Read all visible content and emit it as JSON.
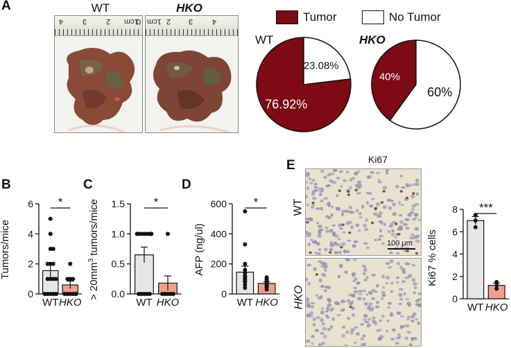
{
  "panels": {
    "A": "A",
    "B": "B",
    "C": "C",
    "D": "D",
    "E": "E"
  },
  "photo_labels": {
    "wt": "WT",
    "hko": "HKO"
  },
  "ruler_labels": [
    "4",
    "3",
    "2",
    "1cm",
    "0",
    "1cm",
    "2",
    "3",
    "4"
  ],
  "legend": [
    {
      "label": "Tumor",
      "color": "#7d0a14"
    },
    {
      "label": "No Tumor",
      "color": "#ffffff"
    }
  ],
  "pies": [
    {
      "title": "WT",
      "slices": [
        {
          "label": "Tumor",
          "value": 76.92,
          "text": "76.92%"
        },
        {
          "label": "No Tumor",
          "value": 23.08,
          "text": "23.08%"
        }
      ]
    },
    {
      "title": "HKO",
      "slices": [
        {
          "label": "Tumor",
          "value": 40,
          "text": "40%"
        },
        {
          "label": "No Tumor",
          "value": 60,
          "text": "60%"
        }
      ]
    }
  ],
  "chart_data": [
    {
      "type": "bar",
      "panel": "B",
      "ylabel": "Tumors/mice",
      "ylim": [
        0,
        6
      ],
      "yticks": [
        "0",
        "2",
        "4",
        "6"
      ],
      "categories": [
        "WT",
        "HKO"
      ],
      "values": [
        1.55,
        0.6
      ],
      "errors": [
        0.45,
        0.25
      ],
      "significance": "*",
      "points": [
        [
          0,
          0,
          0,
          0,
          0,
          0,
          0,
          1,
          1,
          1,
          1,
          2,
          2,
          2,
          3,
          3,
          4,
          5
        ],
        [
          0,
          0,
          0,
          0,
          0,
          0,
          1,
          1,
          1,
          2
        ]
      ]
    },
    {
      "type": "bar",
      "panel": "C",
      "ylabel": "> 20mm3 tumors/mice",
      "ylabel_parts": [
        "> 20mm",
        "3",
        " tumors/mice"
      ],
      "ylim": [
        0,
        1.5
      ],
      "yticks": [
        "0.0",
        "0.5",
        "1.0",
        "1.5"
      ],
      "categories": [
        "WT",
        "HKO"
      ],
      "values": [
        0.65,
        0.18
      ],
      "errors": [
        0.13,
        0.12
      ],
      "significance": "*",
      "points": [
        [
          0,
          0,
          0,
          0,
          0,
          1,
          1,
          1,
          1,
          1,
          1,
          1,
          1
        ],
        [
          0,
          0,
          0,
          0,
          0,
          1
        ]
      ]
    },
    {
      "type": "bar",
      "panel": "D",
      "ylabel": "AFP (ng/ul)",
      "ylim": [
        0,
        600
      ],
      "yticks": [
        "0",
        "200",
        "400",
        "600"
      ],
      "categories": [
        "WT",
        "HKO"
      ],
      "values": [
        145,
        70
      ],
      "errors": [
        40,
        12
      ],
      "significance": "*",
      "points": [
        [
          40,
          60,
          80,
          90,
          100,
          110,
          120,
          140,
          160,
          200,
          330,
          550
        ],
        [
          30,
          45,
          55,
          60,
          65,
          70,
          75,
          80,
          90,
          100,
          110
        ]
      ]
    },
    {
      "type": "bar",
      "panel": "E",
      "title": "Ki67",
      "ylabel": "Ki67 % cells",
      "ylim": [
        0,
        8
      ],
      "yticks": [
        "0",
        "2",
        "4",
        "6",
        "8"
      ],
      "categories": [
        "WT",
        "HKO"
      ],
      "values": [
        7.0,
        1.2
      ],
      "errors": [
        0.35,
        0.2
      ],
      "significance": "***",
      "points": [
        [
          6.4,
          7.0,
          7.5
        ],
        [
          0.9,
          1.2,
          1.5
        ]
      ]
    }
  ],
  "ki67": {
    "title": "Ki67",
    "row_labels": [
      "WT",
      "HKO"
    ],
    "scale_bar": "100 μm"
  },
  "colors": {
    "wt_bar": "#e6e6e6",
    "hko_bar": "#f0a08a",
    "tumor": "#7d0a14"
  }
}
